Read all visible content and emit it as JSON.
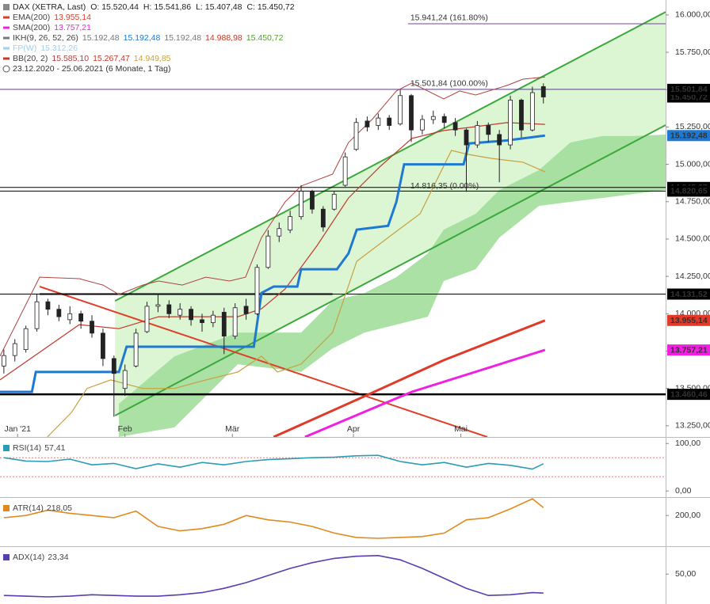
{
  "header": {
    "symbol": "DAX (XETRA, Last)",
    "quote": [
      "O: 15.520,44",
      "H: 15.541,86",
      "L: 15.407,48",
      "C: 15.450,72"
    ],
    "indicators": [
      {
        "name": "EMA(200)",
        "color": "#e03a2a",
        "values": [
          "13.955,14"
        ],
        "value_colors": [
          "#e03a2a"
        ]
      },
      {
        "name": "SMA(200)",
        "color": "#f020e0",
        "values": [
          "13.757,21"
        ],
        "value_colors": [
          "#f020e0"
        ]
      },
      {
        "name": "IKH(9, 26, 52, 26)",
        "color": "#777777",
        "values": [
          "15.192,48",
          "15.192,48",
          "15.192,48",
          "14.988,98",
          "15.450,72"
        ],
        "value_colors": [
          "#777777",
          "#1f78d1",
          "#777777",
          "#c0392b",
          "#55a030"
        ]
      },
      {
        "name": "FP(W)",
        "color": "#9fd0f0",
        "values": [
          "15.312,26"
        ],
        "value_colors": [
          "#9fd0f0"
        ]
      },
      {
        "name": "BB(20, 2)",
        "color": "#c0392b",
        "values": [
          "15.585,10",
          "15.267,47",
          "14.949,85"
        ],
        "value_colors": [
          "#b04040",
          "#c0392b",
          "#c8a040"
        ]
      }
    ],
    "period": "23.12.2020 - 25.06.2021 (6 Monate, 1 Tag)"
  },
  "chart_data": [
    {
      "type": "candlestick",
      "x": [
        0,
        2,
        4,
        6,
        8,
        10,
        12,
        14,
        16,
        18,
        20,
        22,
        24,
        26,
        28,
        30,
        32,
        34,
        36,
        38,
        40,
        42,
        44,
        46,
        48,
        50,
        52,
        54,
        56,
        58,
        60,
        62,
        64,
        66,
        68,
        70,
        72,
        74,
        76,
        78,
        80,
        82,
        84,
        86,
        88,
        90,
        92,
        94,
        96,
        98
      ],
      "open": [
        13650,
        13720,
        13760,
        13900,
        14080,
        14030,
        13960,
        14000,
        13950,
        13870,
        13700,
        13500,
        13650,
        13880,
        14050,
        14060,
        13990,
        14030,
        13960,
        13940,
        14010,
        13850,
        14050,
        14000,
        14310,
        14520,
        14560,
        14650,
        14820,
        14700,
        14700,
        14860,
        15100,
        15290,
        15260,
        15310,
        15270,
        15460,
        15230,
        15300,
        15320,
        15280,
        15230,
        15130,
        15260,
        15200,
        15130,
        15430,
        15230,
        15520.44
      ],
      "high": [
        13760,
        13830,
        13920,
        14130,
        14100,
        14060,
        14050,
        14020,
        13990,
        13900,
        13720,
        13660,
        13900,
        14080,
        14130,
        14090,
        14070,
        14050,
        14000,
        14020,
        14040,
        14070,
        14100,
        14330,
        14560,
        14610,
        14690,
        14860,
        14830,
        14720,
        14820,
        15080,
        15310,
        15320,
        15340,
        15330,
        15500,
        15470,
        15330,
        15360,
        15340,
        15310,
        15240,
        15290,
        15280,
        15230,
        15460,
        15440,
        15520,
        15541.86
      ],
      "low": [
        13600,
        13680,
        13740,
        13880,
        13990,
        13950,
        13930,
        13900,
        13840,
        13650,
        13310,
        13450,
        13640,
        13870,
        14010,
        13970,
        13960,
        13920,
        13880,
        13910,
        13730,
        13830,
        13960,
        13990,
        14300,
        14480,
        14540,
        14630,
        14670,
        14550,
        14690,
        14850,
        15090,
        15220,
        15230,
        15230,
        15260,
        15150,
        15200,
        15270,
        15240,
        15190,
        14816.35,
        15110,
        15150,
        14880,
        15100,
        15180,
        15220,
        15407.48
      ],
      "close": [
        13720,
        13800,
        13900,
        14080,
        14030,
        13980,
        14000,
        13950,
        13870,
        13700,
        13600,
        13620,
        13870,
        14050,
        14060,
        14000,
        14030,
        13960,
        13940,
        13990,
        13850,
        14040,
        14000,
        14310,
        14520,
        14570,
        14650,
        14820,
        14700,
        14580,
        14800,
        15050,
        15280,
        15250,
        15310,
        15260,
        15460,
        15230,
        15300,
        15320,
        15280,
        15230,
        15130,
        15260,
        15200,
        15130,
        15430,
        15230,
        15480,
        15450.72
      ],
      "xlim": [
        -0.7,
        120.2
      ],
      "xticks": [
        {
          "value": 2.5,
          "label": "Jan '21"
        },
        {
          "value": 22,
          "label": "Feb"
        },
        {
          "value": 41.5,
          "label": "Mär"
        },
        {
          "value": 63.5,
          "label": "Apr"
        },
        {
          "value": 83,
          "label": "Mai"
        }
      ],
      "ylim": [
        13175,
        16100
      ],
      "yticks": [
        {
          "value": 13250,
          "label": "13.250,00"
        },
        {
          "value": 13500,
          "label": "13.500,00"
        },
        {
          "value": 13750,
          "label": "13.750,00"
        },
        {
          "value": 14000,
          "label": "14.000,00"
        },
        {
          "value": 14250,
          "label": "14.250,00"
        },
        {
          "value": 14500,
          "label": "14.500,00"
        },
        {
          "value": 14750,
          "label": "14.750,00"
        },
        {
          "value": 15000,
          "label": "15.000,00"
        },
        {
          "value": 15250,
          "label": "15.250,00"
        },
        {
          "value": 15500,
          "label": "15.500,00"
        },
        {
          "value": 15750,
          "label": "15.750,00"
        },
        {
          "value": 16000,
          "label": "16.000,00"
        }
      ],
      "channel": {
        "color": "#3aa83a",
        "fill": "#dcf6d4",
        "x": [
          20.2,
          120.2
        ],
        "upper": [
          14086,
          16020
        ],
        "lower": [
          13318,
          15263
        ]
      },
      "cloud": {
        "color": "#9edc96",
        "x": [
          20.9,
          31.0,
          42.5,
          54.0,
          59.7,
          65.5,
          71.3,
          77.0,
          79.9,
          85.7,
          90.0,
          97.2,
          102.9,
          108.7,
          114.4,
          120.2
        ],
        "upper": [
          13398,
          13715,
          13874,
          13874,
          14086,
          14139,
          14245,
          14404,
          14563,
          14669,
          14828,
          14961,
          15146,
          15189,
          15189,
          15199
        ],
        "lower": [
          13175,
          13239,
          13662,
          13610,
          13768,
          13874,
          13927,
          13980,
          14219,
          14298,
          14510,
          14722,
          14749,
          14775,
          14802,
          14828
        ]
      },
      "trendlines": [
        {
          "color": "#e0402a",
          "x": [
            6.5,
            87.8
          ],
          "values": [
            14182,
            13175
          ]
        }
      ],
      "levels": [
        {
          "value": 15941.24,
          "color": "#7b3fa0",
          "width": 1,
          "x": [
            73.4,
            120.2
          ]
        },
        {
          "value": 15501.84,
          "color": "#5a3d8a",
          "width": 1,
          "x": [
            -0.7,
            120.2
          ]
        },
        {
          "value": 14845.27,
          "color": "#000000",
          "width": 1,
          "x": [
            -0.7,
            120.2
          ]
        },
        {
          "value": 14820.65,
          "color": "#000000",
          "width": 1,
          "x": [
            -0.7,
            120.2
          ]
        },
        {
          "value": 14131.52,
          "color": "#000000",
          "width": 1,
          "x": [
            -0.7,
            120.2
          ]
        },
        {
          "value": 14131.52,
          "color": "#000000",
          "width": 2,
          "x": [
            6.5,
            59.7
          ]
        },
        {
          "value": 13460.46,
          "color": "#000000",
          "width": 2.5,
          "x": [
            -0.7,
            120.2
          ]
        }
      ],
      "overlays": [
        {
          "color": "#b04040",
          "width": 1,
          "x": [
            -0.7,
            6.5,
            13.7,
            18.0,
            20.9,
            25.2,
            28.1,
            32.4,
            36.7,
            41.0,
            43.9,
            46.8,
            51.1,
            54.0,
            59.7,
            62.6,
            67.0,
            71.3,
            74.1,
            79.9,
            82.8,
            85.7,
            91.4,
            94.3,
            98.3
          ],
          "values": [
            13716,
            14245,
            14235,
            14192,
            14129,
            14192,
            14219,
            14192,
            14245,
            14219,
            14245,
            14510,
            14749,
            14855,
            14934,
            15146,
            15305,
            15491,
            15544,
            15438,
            15491,
            15464,
            15528,
            15570,
            15585.1
          ]
        },
        {
          "color": "#c0392b",
          "width": 1.2,
          "x": [
            -0.7,
            13.7,
            20.9,
            28.1,
            35.3,
            42.5,
            46.8,
            51.1,
            56.9,
            62.6,
            68.4,
            74.1,
            79.9,
            85.7,
            91.4,
            98.3
          ],
          "values": [
            13557,
            13927,
            13900,
            13980,
            13980,
            13980,
            14033,
            14166,
            14457,
            14775,
            14987,
            15173,
            15226,
            15252,
            15279,
            15267.47
          ]
        },
        {
          "color": "#c8a040",
          "width": 1.2,
          "x": [
            7.9,
            12.3,
            15.1,
            19.4,
            25.2,
            31.0,
            36.7,
            42.5,
            46.8,
            49.7,
            54.0,
            59.7,
            64.1,
            69.8,
            75.6,
            81.3,
            84.2,
            88.5,
            94.3,
            98.3
          ],
          "values": [
            13175,
            13340,
            13500,
            13557,
            13500,
            13500,
            13557,
            13610,
            13716,
            13610,
            13663,
            13874,
            14351,
            14510,
            14669,
            15093,
            15067,
            15040,
            15014,
            14949.85
          ]
        },
        {
          "color": "#1f78d1",
          "width": 3,
          "x": [
            -0.7,
            5.1,
            5.8,
            20.9,
            22.3,
            45.4,
            46.8,
            49.0,
            53.3,
            54.0,
            60.5,
            62.6,
            64.1,
            69.8,
            71.3,
            72.7,
            83.5,
            84.5,
            91.4,
            98.3
          ],
          "values": [
            13477,
            13477,
            13610,
            13610,
            13779,
            13779,
            14139,
            14182,
            14182,
            14298,
            14298,
            14404,
            14563,
            14589,
            14749,
            15000,
            15000,
            15140,
            15160,
            15192.48
          ]
        },
        {
          "color": "#e03a2a",
          "width": 3,
          "x": [
            49.0,
            64.1,
            79.9,
            98.3
          ],
          "values": [
            13175,
            13424,
            13689,
            13955.14
          ]
        },
        {
          "color": "#f020e0",
          "width": 3,
          "x": [
            54.7,
            74.1,
            98.3
          ],
          "values": [
            13175,
            13477,
            13757.21
          ]
        }
      ],
      "annotations": [
        {
          "x": 73.4,
          "value": 15941.24,
          "label": "15.941,24 (161.80%)"
        },
        {
          "x": 73.4,
          "value": 15501.84,
          "label": "15.501,84 (100.00%)"
        },
        {
          "x": 73.4,
          "value": 14816.35,
          "label": "14.816,35 (0.00%)"
        }
      ],
      "price_tags": [
        {
          "value": 15450.72,
          "label": "15.450,72",
          "color": "#000000"
        },
        {
          "value": 15501.84,
          "label": "15.501,84",
          "color": "#000000"
        },
        {
          "value": 15192.48,
          "label": "15.192,48",
          "color": "#1f78d1"
        },
        {
          "value": 14845.27,
          "label": "14.845,27",
          "color": "#000000"
        },
        {
          "value": 14820.65,
          "label": "14.820,65",
          "color": "#000000"
        },
        {
          "value": 14131.52,
          "label": "14.131,52",
          "color": "#000000"
        },
        {
          "value": 13955.14,
          "label": "13.955,14",
          "color": "#e03a2a"
        },
        {
          "value": 13757.21,
          "label": "13.757,21",
          "color": "#f020e0"
        },
        {
          "value": 13460.46,
          "label": "13.460,46",
          "color": "#000000"
        }
      ]
    },
    {
      "type": "line",
      "title": "RSI(14)",
      "subtitle": "57,41",
      "color": "#2a9db5",
      "x": [
        0,
        4,
        8,
        12,
        16,
        20,
        24,
        28,
        32,
        36,
        40,
        44,
        48,
        52,
        56,
        60,
        64,
        68,
        72,
        76,
        80,
        84,
        88,
        92,
        96,
        98
      ],
      "values": [
        70,
        63,
        62,
        67,
        55,
        58,
        47,
        57,
        50,
        60,
        55,
        62,
        66,
        68,
        70,
        71,
        74,
        75,
        62,
        55,
        60,
        50,
        58,
        54,
        46,
        57.41
      ],
      "xlim": [
        -0.7,
        120.2
      ],
      "ylim": [
        -13,
        112
      ],
      "yticks": [
        {
          "value": 100,
          "label": "100,00"
        },
        {
          "value": 0,
          "label": "0,00"
        }
      ],
      "levels": [
        70,
        30
      ],
      "level_color": "#e08080"
    },
    {
      "type": "line",
      "title": "ATR(14)",
      "subtitle": "218,05",
      "color": "#e08a1e",
      "x": [
        0,
        4,
        8,
        12,
        16,
        20,
        24,
        28,
        32,
        36,
        40,
        44,
        48,
        52,
        56,
        60,
        64,
        68,
        72,
        76,
        80,
        84,
        88,
        92,
        96,
        98
      ],
      "values": [
        195,
        200,
        212,
        205,
        200,
        195,
        210,
        175,
        165,
        170,
        180,
        200,
        190,
        185,
        175,
        160,
        150,
        148,
        150,
        152,
        160,
        190,
        195,
        215,
        238,
        218.05
      ],
      "xlim": [
        -0.7,
        120.2
      ],
      "ylim": [
        130,
        240
      ],
      "yticks": [
        {
          "value": 200,
          "label": "200,00"
        }
      ]
    },
    {
      "type": "line",
      "title": "ADX(14)",
      "subtitle": "23,34",
      "color": "#5a3db0",
      "x": [
        0,
        4,
        8,
        12,
        16,
        20,
        24,
        28,
        32,
        36,
        40,
        44,
        48,
        52,
        56,
        60,
        64,
        68,
        72,
        76,
        80,
        84,
        88,
        92,
        96,
        98
      ],
      "values": [
        20,
        19,
        18,
        19,
        21,
        20,
        19,
        19,
        21,
        24,
        30,
        38,
        48,
        58,
        66,
        72,
        75,
        76,
        70,
        58,
        44,
        30,
        20,
        21,
        24,
        23.34
      ],
      "xlim": [
        -0.7,
        120.2
      ],
      "ylim": [
        8,
        88
      ],
      "yticks": [
        {
          "value": 50,
          "label": "50,00"
        }
      ]
    }
  ]
}
